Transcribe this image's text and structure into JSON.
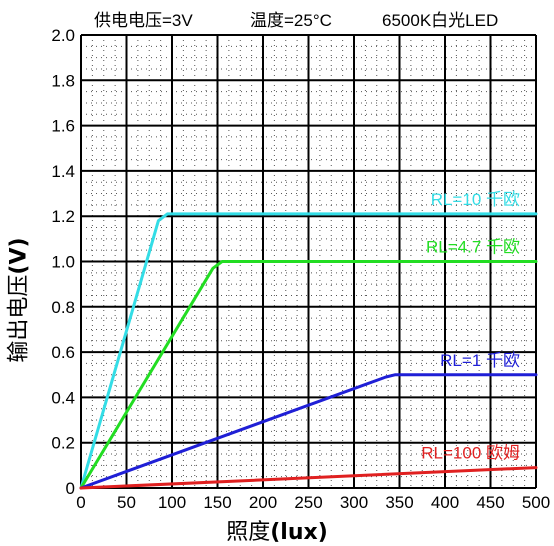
{
  "header": {
    "supply": "供电电压=3V",
    "temperature": "温度=25°C",
    "light": "6500K白光LED"
  },
  "axes": {
    "ylabel_main": "输出电压",
    "ylabel_unit": "(V)",
    "xlabel_main": "照度",
    "xlabel_unit": "(lux)"
  },
  "chart_data": {
    "type": "line",
    "xlim": [
      0,
      500
    ],
    "ylim": [
      0,
      2.0
    ],
    "x_ticks": [
      0,
      50,
      100,
      150,
      200,
      250,
      300,
      350,
      400,
      450,
      500
    ],
    "y_ticks": [
      "0",
      "0.2",
      "0.4",
      "0.6",
      "0.8",
      "1.0",
      "1.2",
      "1.4",
      "1.6",
      "1.8",
      "2.0"
    ],
    "grid": true,
    "legend": "inline labels at right",
    "series": [
      {
        "name": "RL=10 千欧",
        "color": "#33dde6",
        "points": [
          [
            0,
            0
          ],
          [
            85,
            1.18
          ],
          [
            95,
            1.21
          ],
          [
            500,
            1.21
          ]
        ]
      },
      {
        "name": "RL=4.7 千欧",
        "color": "#22dd22",
        "points": [
          [
            0,
            0
          ],
          [
            145,
            0.97
          ],
          [
            155,
            1.0
          ],
          [
            500,
            1.0
          ]
        ]
      },
      {
        "name": "RL=1 千欧",
        "color": "#1f1fd6",
        "points": [
          [
            0,
            0
          ],
          [
            335,
            0.49
          ],
          [
            345,
            0.5
          ],
          [
            500,
            0.5
          ]
        ]
      },
      {
        "name": "RL=100 欧姆",
        "color": "#e02020",
        "points": [
          [
            0,
            0
          ],
          [
            500,
            0.09
          ]
        ]
      }
    ]
  }
}
